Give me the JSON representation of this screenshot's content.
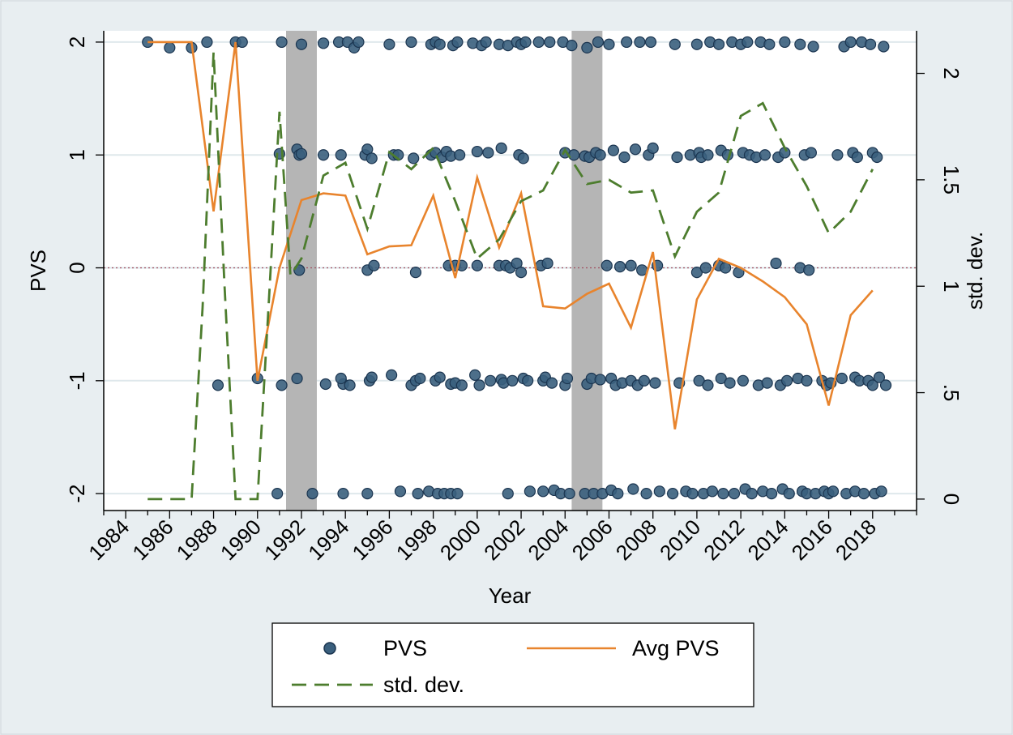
{
  "chart_data": {
    "type": "scatter+line",
    "xlabel": "Year",
    "ylabel": "PVS",
    "y2label": "std. dev.",
    "xlim": [
      1983,
      2020
    ],
    "ylim": [
      -2.15,
      2.1
    ],
    "y2lim": [
      -0.0537,
      2.2
    ],
    "xticks": [
      "1984",
      "1986",
      "1988",
      "1990",
      "1992",
      "1994",
      "1996",
      "1998",
      "2000",
      "2002",
      "2004",
      "2006",
      "2008",
      "2010",
      "2012",
      "2014",
      "2016",
      "2018"
    ],
    "yticks": [
      "-2",
      "-1",
      "0",
      "1",
      "2"
    ],
    "y2ticks": [
      "0",
      ".5",
      "1",
      "1.5",
      "2"
    ],
    "reference_line_y": 0,
    "shaded_periods": [
      [
        1991.3,
        1992.7
      ],
      [
        2004.3,
        2005.7
      ]
    ],
    "colors": {
      "background": "#e8eef1",
      "plot_background": "#ffffff",
      "grid": "#dfe8ec",
      "marker_fill": "#3a5f7d",
      "marker_edge": "#1b3550",
      "avg_line": "#e8842d",
      "std_line": "#4d7d2e",
      "shading": "#b5b5b5",
      "reference": "#a05060"
    },
    "legend": {
      "position": "bottom",
      "items": [
        {
          "label": "PVS",
          "style": "marker"
        },
        {
          "label": "Avg PVS",
          "style": "solid"
        },
        {
          "label": "std. dev.",
          "style": "dashed"
        }
      ]
    },
    "series": [
      {
        "name": "PVS",
        "type": "scatter",
        "points": [
          [
            1985,
            2
          ],
          [
            1986,
            1.95
          ],
          [
            1987,
            1.95
          ],
          [
            1987.7,
            2
          ],
          [
            1988.2,
            -1.04
          ],
          [
            1989,
            2
          ],
          [
            1989.3,
            2
          ],
          [
            1990,
            -0.98
          ],
          [
            1991,
            1.01
          ],
          [
            1991.1,
            -1.04
          ],
          [
            1991.1,
            2
          ],
          [
            1990.9,
            -2
          ],
          [
            1991.8,
            1.05
          ],
          [
            1991.9,
            1.0
          ],
          [
            1992,
            1.01
          ],
          [
            1991.9,
            -0.02
          ],
          [
            1991.8,
            -0.98
          ],
          [
            1992,
            1.98
          ],
          [
            1992.5,
            -2
          ],
          [
            1993,
            1.99
          ],
          [
            1993,
            1.0
          ],
          [
            1993.1,
            -1.03
          ],
          [
            1993.7,
            2
          ],
          [
            1993.8,
            1
          ],
          [
            1993.9,
            -1.03
          ],
          [
            1993.8,
            -0.98
          ],
          [
            1993.9,
            -2
          ],
          [
            1994.1,
            2
          ],
          [
            1994.2,
            -1.04
          ],
          [
            1994.4,
            1.95
          ],
          [
            1994.6,
            2
          ],
          [
            1994.9,
            1.0
          ],
          [
            1995,
            1.05
          ],
          [
            1995,
            -0.02
          ],
          [
            1995.1,
            -1
          ],
          [
            1995.2,
            0.97
          ],
          [
            1995.2,
            -0.97
          ],
          [
            1995.3,
            0.02
          ],
          [
            1995,
            -2
          ],
          [
            1996,
            1.98
          ],
          [
            1996.1,
            -0.95
          ],
          [
            1996.2,
            1.0
          ],
          [
            1996.4,
            1.0
          ],
          [
            1996.5,
            -1.98
          ],
          [
            1997,
            2
          ],
          [
            1997.1,
            0.97
          ],
          [
            1997,
            -1.04
          ],
          [
            1997.2,
            -1
          ],
          [
            1997.2,
            -0.04
          ],
          [
            1997.3,
            -2
          ],
          [
            1997.4,
            -0.98
          ],
          [
            1997.9,
            1.98
          ],
          [
            1997.9,
            1
          ],
          [
            1997.8,
            -1.98
          ],
          [
            1998.1,
            2
          ],
          [
            1998.1,
            1.02
          ],
          [
            1998.1,
            -1.0
          ],
          [
            1998.2,
            -2
          ],
          [
            1998.3,
            1.98
          ],
          [
            1998.4,
            0.98
          ],
          [
            1998.3,
            -0.97
          ],
          [
            1998.5,
            -2
          ],
          [
            1998.6,
            1.03
          ],
          [
            1998.7,
            0.02
          ],
          [
            1998.8,
            0.99
          ],
          [
            1998.8,
            -1.03
          ],
          [
            1998.8,
            -2
          ],
          [
            1998.9,
            1.97
          ],
          [
            1999,
            0.02
          ],
          [
            1999,
            -1.02
          ],
          [
            1999.1,
            -2
          ],
          [
            1999.1,
            2
          ],
          [
            1999.2,
            1.0
          ],
          [
            1999.3,
            0.02
          ],
          [
            1999.3,
            -1.04
          ],
          [
            1999.8,
            1.99
          ],
          [
            1999.9,
            -0.95
          ],
          [
            2000,
            0.02
          ],
          [
            2000,
            1.03
          ],
          [
            2000.1,
            -1.04
          ],
          [
            2000.2,
            1.97
          ],
          [
            2000.4,
            2
          ],
          [
            2000.5,
            1.02
          ],
          [
            2000.6,
            -1
          ],
          [
            2001,
            1.98
          ],
          [
            2001,
            0.02
          ],
          [
            2001.1,
            1.06
          ],
          [
            2001.1,
            -0.99
          ],
          [
            2001.2,
            -1.02
          ],
          [
            2001.3,
            0.02
          ],
          [
            2001.4,
            1.97
          ],
          [
            2001.4,
            -2
          ],
          [
            2001.5,
            0.0
          ],
          [
            2001.6,
            -1
          ],
          [
            2001.8,
            2
          ],
          [
            2001.8,
            0.04
          ],
          [
            2001.9,
            1.0
          ],
          [
            2002,
            -0.04
          ],
          [
            2002,
            1.98
          ],
          [
            2002.1,
            0.97
          ],
          [
            2002.1,
            -0.98
          ],
          [
            2002.2,
            2
          ],
          [
            2002.3,
            -1
          ],
          [
            2002.4,
            -1.98
          ],
          [
            2002.8,
            2
          ],
          [
            2002.9,
            0.02
          ],
          [
            2003,
            -1.0
          ],
          [
            2003,
            -1.98
          ],
          [
            2003.1,
            -0.97
          ],
          [
            2003.2,
            0.04
          ],
          [
            2003.3,
            2
          ],
          [
            2003.4,
            -1.02
          ],
          [
            2003.5,
            -1.97
          ],
          [
            2003.8,
            -2
          ],
          [
            2003.9,
            2
          ],
          [
            2004,
            1.02
          ],
          [
            2004,
            -1.04
          ],
          [
            2004.1,
            -0.98
          ],
          [
            2004.2,
            -2
          ],
          [
            2004.3,
            1.97
          ],
          [
            2004.4,
            1
          ],
          [
            2004.9,
            0.99
          ],
          [
            2004.9,
            -2
          ],
          [
            2005,
            -1.03
          ],
          [
            2005,
            1.95
          ],
          [
            2005.1,
            0.98
          ],
          [
            2005.2,
            -0.98
          ],
          [
            2005.3,
            -2
          ],
          [
            2005.4,
            1.02
          ],
          [
            2005.5,
            2
          ],
          [
            2005.6,
            1.0
          ],
          [
            2005.6,
            -0.99
          ],
          [
            2005.7,
            -2
          ],
          [
            2005.9,
            0.02
          ],
          [
            2006,
            1.98
          ],
          [
            2006.1,
            -0.98
          ],
          [
            2006.1,
            -1.97
          ],
          [
            2006.2,
            1.04
          ],
          [
            2006.3,
            -1.04
          ],
          [
            2006.4,
            -2
          ],
          [
            2006.5,
            0.01
          ],
          [
            2006.6,
            -1.02
          ],
          [
            2006.7,
            0.98
          ],
          [
            2006.8,
            2
          ],
          [
            2007,
            0.02
          ],
          [
            2007,
            -1.0
          ],
          [
            2007.1,
            -1.96
          ],
          [
            2007.2,
            1.05
          ],
          [
            2007.3,
            -1.04
          ],
          [
            2007.4,
            2
          ],
          [
            2007.5,
            -0.02
          ],
          [
            2007.6,
            -1.0
          ],
          [
            2007.7,
            -2
          ],
          [
            2007.8,
            1.0
          ],
          [
            2007.9,
            2
          ],
          [
            2008,
            1.06
          ],
          [
            2008.1,
            -1.02
          ],
          [
            2008.2,
            0.02
          ],
          [
            2008.3,
            -1.98
          ],
          [
            2008.9,
            -2
          ],
          [
            2009,
            1.98
          ],
          [
            2009.1,
            0.98
          ],
          [
            2009.2,
            -1.02
          ],
          [
            2009.5,
            -1.98
          ],
          [
            2009.7,
            1.0
          ],
          [
            2009.8,
            -2
          ],
          [
            2010,
            1.98
          ],
          [
            2010,
            -0.04
          ],
          [
            2010.1,
            1.02
          ],
          [
            2010.1,
            -1.0
          ],
          [
            2010.2,
            0.98
          ],
          [
            2010.3,
            -2
          ],
          [
            2010.4,
            0.0
          ],
          [
            2010.5,
            1.0
          ],
          [
            2010.5,
            -1.04
          ],
          [
            2010.6,
            2
          ],
          [
            2010.7,
            -1.98
          ],
          [
            2011,
            0.02
          ],
          [
            2011,
            1.98
          ],
          [
            2011.1,
            -0.98
          ],
          [
            2011.1,
            1.04
          ],
          [
            2011.2,
            -2
          ],
          [
            2011.3,
            0.0
          ],
          [
            2011.4,
            1.0
          ],
          [
            2011.5,
            -1.02
          ],
          [
            2011.6,
            2
          ],
          [
            2011.7,
            -2
          ],
          [
            2011.9,
            -0.04
          ],
          [
            2012,
            1.98
          ],
          [
            2012.1,
            1.02
          ],
          [
            2012.1,
            -1.0
          ],
          [
            2012.2,
            -1.96
          ],
          [
            2012.3,
            2
          ],
          [
            2012.4,
            1.0
          ],
          [
            2012.5,
            -2
          ],
          [
            2012.7,
            0.98
          ],
          [
            2012.8,
            -1.04
          ],
          [
            2012.9,
            2
          ],
          [
            2013,
            -1.98
          ],
          [
            2013.1,
            1.0
          ],
          [
            2013.2,
            -1.02
          ],
          [
            2013.3,
            1.98
          ],
          [
            2013.4,
            -2
          ],
          [
            2013.6,
            0.04
          ],
          [
            2013.7,
            0.98
          ],
          [
            2013.8,
            -1.04
          ],
          [
            2013.9,
            -1.96
          ],
          [
            2014,
            2
          ],
          [
            2014,
            1.02
          ],
          [
            2014.1,
            -1.0
          ],
          [
            2014.2,
            -2
          ],
          [
            2014.6,
            -0.98
          ],
          [
            2014.7,
            0.0
          ],
          [
            2014.7,
            1.98
          ],
          [
            2014.8,
            -1.98
          ],
          [
            2014.9,
            1.0
          ],
          [
            2015,
            -1.0
          ],
          [
            2015,
            -2
          ],
          [
            2015.1,
            -0.02
          ],
          [
            2015.2,
            1.02
          ],
          [
            2015.3,
            1.96
          ],
          [
            2015.4,
            -2
          ],
          [
            2015.7,
            -1.0
          ],
          [
            2015.8,
            -1.98
          ],
          [
            2015.9,
            -1.04
          ],
          [
            2016,
            -2
          ],
          [
            2016.1,
            -1.02
          ],
          [
            2016.2,
            -1.98
          ],
          [
            2016.4,
            1.0
          ],
          [
            2016.6,
            -0.98
          ],
          [
            2016.7,
            1.96
          ],
          [
            2016.8,
            -2
          ],
          [
            2017,
            2
          ],
          [
            2017.1,
            1.02
          ],
          [
            2017.2,
            -0.97
          ],
          [
            2017.2,
            -1.98
          ],
          [
            2017.3,
            0.98
          ],
          [
            2017.4,
            -1.0
          ],
          [
            2017.5,
            2
          ],
          [
            2017.6,
            -2
          ],
          [
            2017.8,
            -1.0
          ],
          [
            2017.9,
            1.98
          ],
          [
            2018,
            1.02
          ],
          [
            2018,
            -1.04
          ],
          [
            2018.1,
            -2
          ],
          [
            2018.2,
            0.98
          ],
          [
            2018.3,
            -0.97
          ],
          [
            2018.4,
            -1.98
          ],
          [
            2018.5,
            1.96
          ],
          [
            2018.6,
            -1.04
          ]
        ]
      },
      {
        "name": "Avg PVS",
        "type": "line",
        "axis": "left",
        "x": [
          1985,
          1986,
          1987,
          1988,
          1989,
          1990,
          1991,
          1992,
          1993,
          1994,
          1995,
          1996,
          1997,
          1998,
          1999,
          2000,
          2001,
          2002,
          2003,
          2004,
          2005,
          2006,
          2007,
          2008,
          2009,
          2010,
          2011,
          2012,
          2013,
          2014,
          2015,
          2016,
          2017,
          2018
        ],
        "y": [
          2.0,
          2.0,
          2.0,
          0.5,
          2.0,
          -1.0,
          0.0,
          0.6,
          0.66,
          0.64,
          0.12,
          0.19,
          0.2,
          0.64,
          -0.09,
          0.8,
          0.18,
          0.66,
          -0.34,
          -0.36,
          -0.23,
          -0.14,
          -0.53,
          0.14,
          -1.43,
          -0.28,
          0.08,
          0.0,
          -0.12,
          -0.26,
          -0.5,
          -1.22,
          -0.42,
          -0.2
        ]
      },
      {
        "name": "std. dev.",
        "type": "line",
        "axis": "right",
        "x": [
          1985,
          1986,
          1987,
          1987.5,
          1988,
          1988.5,
          1989,
          1990,
          1990.5,
          1991,
          1991.5,
          1992,
          1993,
          1994,
          1995,
          1996,
          1997,
          1998,
          1999,
          2000,
          2001,
          2002,
          2003,
          2004,
          2005,
          2006,
          2007,
          2008,
          2009,
          2010,
          2011,
          2012,
          2013,
          2014,
          2015,
          2016,
          2017,
          2018
        ],
        "y": [
          0.0,
          0.0,
          0.0,
          0.9,
          2.1,
          1.0,
          0.0,
          0.0,
          0.9,
          1.82,
          1.05,
          1.13,
          1.52,
          1.58,
          1.27,
          1.63,
          1.55,
          1.65,
          1.4,
          1.13,
          1.22,
          1.4,
          1.45,
          1.64,
          1.48,
          1.5,
          1.44,
          1.45,
          1.14,
          1.35,
          1.44,
          1.8,
          1.86,
          1.65,
          1.47,
          1.25,
          1.35,
          1.55
        ]
      }
    ]
  }
}
